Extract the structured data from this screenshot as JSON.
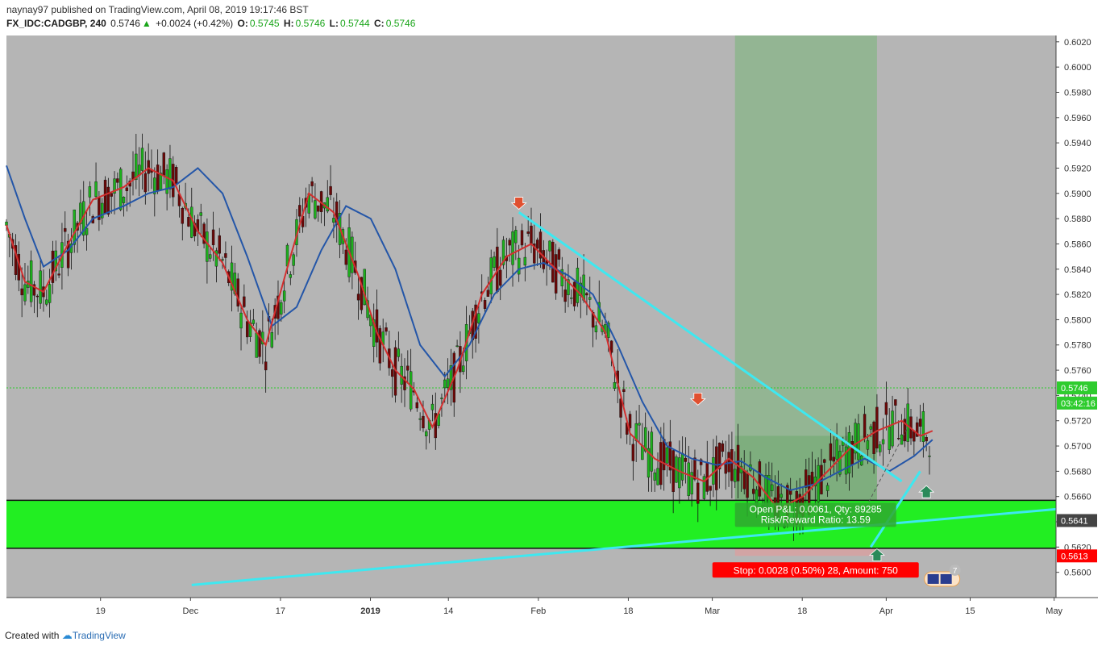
{
  "header": {
    "publisher": "naynay97",
    "published_text": "published on TradingView.com, April 08, 2019 19:17:46 BST",
    "symbol": "FX_IDC:CADGBP, 240",
    "last": "0.5746",
    "change": "+0.0024 (+0.42%)",
    "o_label": "O:",
    "o_val": "0.5745",
    "h_label": "H:",
    "h_val": "0.5746",
    "l_label": "L:",
    "l_val": "0.5744",
    "c_label": "C:",
    "c_val": "0.5746"
  },
  "footer": {
    "created_with": "Created with",
    "brand": "TradingView"
  },
  "colors": {
    "background": "#b5b5b5",
    "up": "#1db11d",
    "down": "#6b0808",
    "ema_fast": "#d32f2f",
    "ema_slow": "#2456a8",
    "trend": "#3ee8f0",
    "support_zone": "#22ee22",
    "target_zone": "#8fb58f",
    "stop": "#ff0000"
  },
  "chart_data": {
    "type": "candlestick",
    "ylim": [
      0.558,
      0.6025
    ],
    "y_ticks": [
      "0.6020",
      "0.6000",
      "0.5980",
      "0.5960",
      "0.5940",
      "0.5920",
      "0.5900",
      "0.5880",
      "0.5860",
      "0.5840",
      "0.5820",
      "0.5800",
      "0.5780",
      "0.5760",
      "0.5740",
      "0.5720",
      "0.5700",
      "0.5680",
      "0.5660",
      "0.5640",
      "0.5620",
      "0.5600"
    ],
    "x_ticks": [
      "19",
      "Dec",
      "17",
      "2019",
      "14",
      "Feb",
      "18",
      "Mar",
      "18",
      "Apr",
      "15",
      "May"
    ],
    "price_labels": [
      {
        "text": "0.5746",
        "value": 0.5746,
        "kind": "last"
      },
      {
        "text": "03:42:16",
        "value": 0.5734,
        "kind": "countdown"
      },
      {
        "text": "0.5641",
        "value": 0.5641,
        "kind": "level"
      },
      {
        "text": "0.5613",
        "value": 0.5613,
        "kind": "stop"
      }
    ],
    "support_zone": [
      0.5619,
      0.5657
    ],
    "position": {
      "type": "long",
      "entry": 0.5641,
      "stop": 0.5613,
      "target": 0.6025,
      "open_pl_text": "Open P&L: 0.0061, Qty: 89285",
      "risk_reward_text": "Risk/Reward Ratio: 13.59",
      "stop_text": "Stop: 0.0028 (0.50%) 28, Amount: 750"
    },
    "fast_ma_points": [
      [
        0,
        0.5875
      ],
      [
        3,
        0.583
      ],
      [
        6,
        0.5822
      ],
      [
        10,
        0.586
      ],
      [
        14,
        0.5895
      ],
      [
        19,
        0.5905
      ],
      [
        23,
        0.592
      ],
      [
        27,
        0.591
      ],
      [
        31,
        0.587
      ],
      [
        35,
        0.5845
      ],
      [
        39,
        0.58
      ],
      [
        42,
        0.578
      ],
      [
        46,
        0.585
      ],
      [
        49,
        0.59
      ],
      [
        53,
        0.5885
      ],
      [
        57,
        0.5835
      ],
      [
        60,
        0.579
      ],
      [
        63,
        0.576
      ],
      [
        66,
        0.5745
      ],
      [
        69,
        0.5715
      ],
      [
        73,
        0.576
      ],
      [
        77,
        0.582
      ],
      [
        81,
        0.585
      ],
      [
        85,
        0.586
      ],
      [
        89,
        0.584
      ],
      [
        93,
        0.582
      ],
      [
        97,
        0.579
      ],
      [
        101,
        0.571
      ],
      [
        105,
        0.569
      ],
      [
        109,
        0.568
      ],
      [
        113,
        0.5672
      ],
      [
        117,
        0.569
      ],
      [
        121,
        0.5675
      ],
      [
        125,
        0.565
      ],
      [
        129,
        0.566
      ],
      [
        133,
        0.568
      ],
      [
        137,
        0.57
      ],
      [
        141,
        0.5712
      ],
      [
        145,
        0.572
      ],
      [
        148,
        0.5708
      ],
      [
        150,
        0.5712
      ]
    ],
    "slow_ma_points": [
      [
        0,
        0.5922
      ],
      [
        3,
        0.588
      ],
      [
        6,
        0.5842
      ],
      [
        10,
        0.5855
      ],
      [
        14,
        0.588
      ],
      [
        19,
        0.589
      ],
      [
        23,
        0.59
      ],
      [
        27,
        0.5905
      ],
      [
        31,
        0.592
      ],
      [
        35,
        0.59
      ],
      [
        39,
        0.585
      ],
      [
        43,
        0.5795
      ],
      [
        47,
        0.581
      ],
      [
        51,
        0.5855
      ],
      [
        55,
        0.589
      ],
      [
        59,
        0.588
      ],
      [
        63,
        0.584
      ],
      [
        67,
        0.578
      ],
      [
        71,
        0.5755
      ],
      [
        75,
        0.578
      ],
      [
        79,
        0.582
      ],
      [
        83,
        0.584
      ],
      [
        87,
        0.5845
      ],
      [
        91,
        0.5835
      ],
      [
        95,
        0.582
      ],
      [
        99,
        0.578
      ],
      [
        103,
        0.5735
      ],
      [
        107,
        0.57
      ],
      [
        111,
        0.569
      ],
      [
        115,
        0.5685
      ],
      [
        119,
        0.5688
      ],
      [
        123,
        0.5675
      ],
      [
        127,
        0.5665
      ],
      [
        131,
        0.567
      ],
      [
        135,
        0.568
      ],
      [
        139,
        0.569
      ],
      [
        143,
        0.568
      ],
      [
        147,
        0.5692
      ],
      [
        150,
        0.5705
      ]
    ],
    "trendlines": [
      {
        "from": [
          83,
          0.5885
        ],
        "to": [
          145,
          0.5672
        ]
      },
      {
        "from": [
          30,
          0.559
        ],
        "to": [
          170,
          0.565
        ]
      },
      {
        "from": [
          140,
          0.562
        ],
        "to": [
          148,
          0.568
        ]
      }
    ],
    "markers": [
      {
        "type": "arrow-down",
        "at": [
          83,
          0.5888
        ],
        "color": "#e05030"
      },
      {
        "type": "arrow-down",
        "at": [
          112,
          0.5733
        ],
        "color": "#e05030"
      },
      {
        "type": "arrow-up",
        "at": [
          141,
          0.5618
        ],
        "color": "#2a8a5a"
      },
      {
        "type": "arrow-up",
        "at": [
          149,
          0.5668
        ],
        "color": "#2a8a5a"
      }
    ],
    "flags_badge": "7"
  }
}
